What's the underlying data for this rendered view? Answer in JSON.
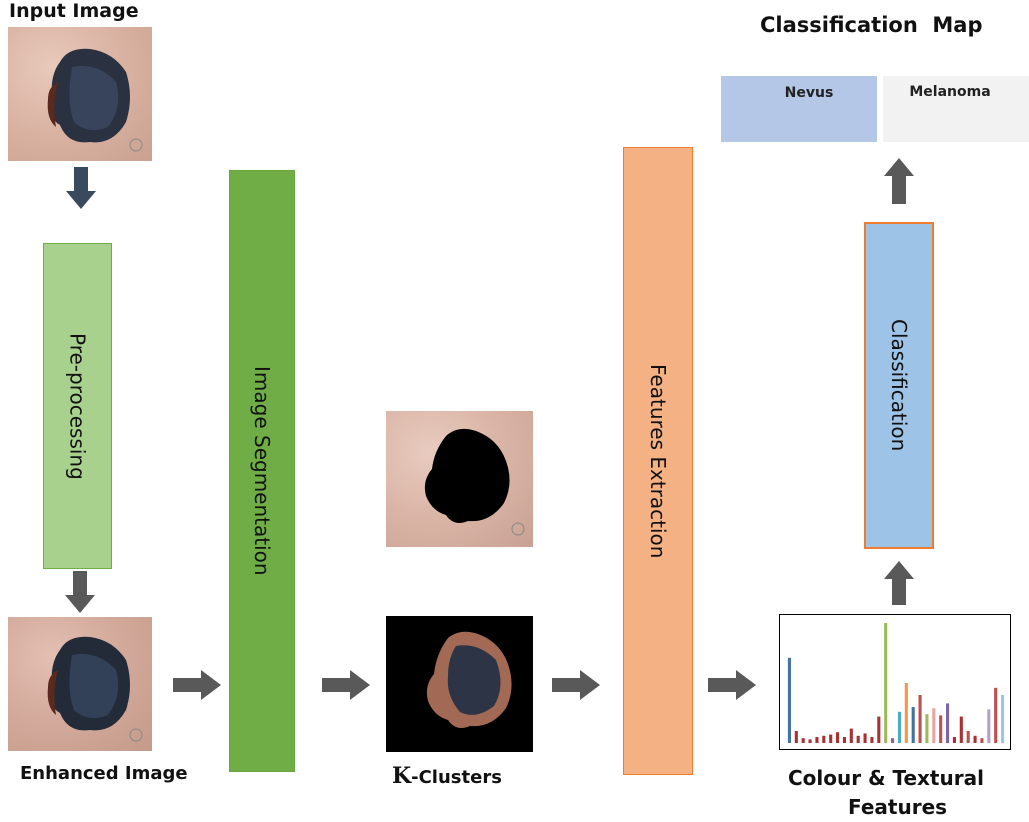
{
  "titles": {
    "input_image": "Input Image",
    "enhanced_image": "Enhanced Image",
    "k_clusters_k": "K",
    "k_clusters_rest": "-Clusters",
    "classification_map": "Classification  Map",
    "features_line1": "Colour & Textural",
    "features_line2": "Features"
  },
  "stages": {
    "preprocessing": "Pre-processing",
    "segmentation": "Image Segmentation",
    "feature_extraction": "Features Extraction",
    "classification": "Classification"
  },
  "classes": {
    "nevus": "Nevus",
    "melanoma": "Melanoma"
  },
  "colors": {
    "preprocessing_fill": "#a9d18e",
    "preprocessing_border": "#70ad47",
    "segmentation_fill": "#70ad47",
    "feature_fill": "#f4b183",
    "feature_border": "#ed7d31",
    "classification_fill": "#9dc3e6",
    "classification_border": "#ed7d31",
    "nevus_fill": "#b4c7e7",
    "melanoma_fill": "#f2f2f2",
    "arrow_dark": "#3a4a5e",
    "arrow_gray": "#595959"
  },
  "icons": {
    "down_arrow": "down-arrow-icon",
    "right_arrow": "right-arrow-icon",
    "up_arrow": "up-arrow-icon"
  },
  "chart_data": {
    "type": "bar",
    "title": "",
    "xlabel": "",
    "ylabel": "",
    "ylim": [
      0,
      1
    ],
    "series": [
      {
        "values": [
          0.71,
          0.1,
          0.04,
          0.03,
          0.05,
          0.06,
          0.07,
          0.09,
          0.05,
          0.12,
          0.06,
          0.08,
          0.05,
          0.22,
          1.0,
          0.04,
          0.26,
          0.5,
          0.3,
          0.4,
          0.24,
          0.29,
          0.23,
          0.33,
          0.05,
          0.22,
          0.1,
          0.06,
          0.04,
          0.28,
          0.46,
          0.4
        ]
      }
    ]
  }
}
